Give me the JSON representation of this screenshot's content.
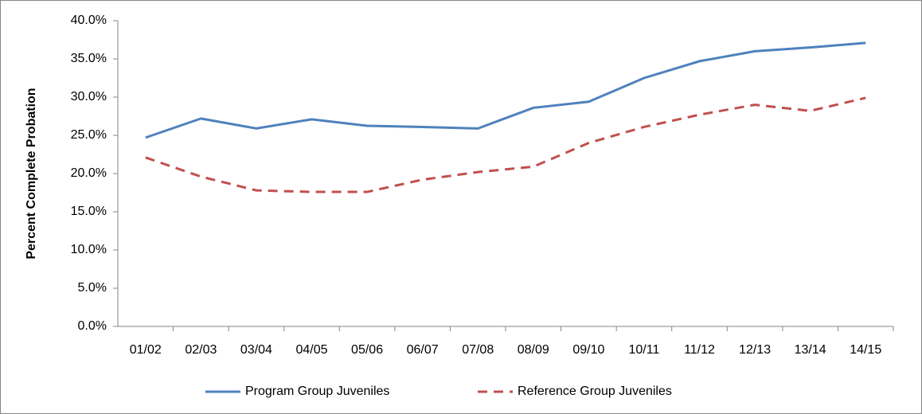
{
  "chart_data": {
    "type": "line",
    "y_label": "Percent Complete Probation",
    "categories": [
      "01/02",
      "02/03",
      "03/04",
      "04/05",
      "05/06",
      "06/07",
      "07/08",
      "08/09",
      "09/10",
      "10/11",
      "11/12",
      "12/13",
      "13/14",
      "14/15"
    ],
    "series": [
      {
        "name": "Program Group Juveniles",
        "color": "#4f81bd",
        "style": "solid",
        "values": [
          24.7,
          27.2,
          25.9,
          27.1,
          26.25,
          26.1,
          25.9,
          28.6,
          29.4,
          32.5,
          34.7,
          36.0,
          36.5,
          37.1
        ]
      },
      {
        "name": "Reference Group Juveniles",
        "color": "#c0504d",
        "style": "dashed",
        "values": [
          22.1,
          19.6,
          17.8,
          17.6,
          17.6,
          19.2,
          20.2,
          20.9,
          24.0,
          26.1,
          27.7,
          29.0,
          28.2,
          29.9
        ]
      }
    ],
    "ylim": [
      0,
      40
    ],
    "yticks": [
      {
        "value": 0,
        "label": "0.0%"
      },
      {
        "value": 5,
        "label": "5.0%"
      },
      {
        "value": 10,
        "label": "10.0%"
      },
      {
        "value": 15,
        "label": "15.0%"
      },
      {
        "value": 20,
        "label": "20.0%"
      },
      {
        "value": 25,
        "label": "25.0%"
      },
      {
        "value": 30,
        "label": "30.0%"
      },
      {
        "value": 35,
        "label": "35.0%"
      },
      {
        "value": 40,
        "label": "40.0%"
      }
    ],
    "grid": false,
    "legend": "bottom"
  }
}
